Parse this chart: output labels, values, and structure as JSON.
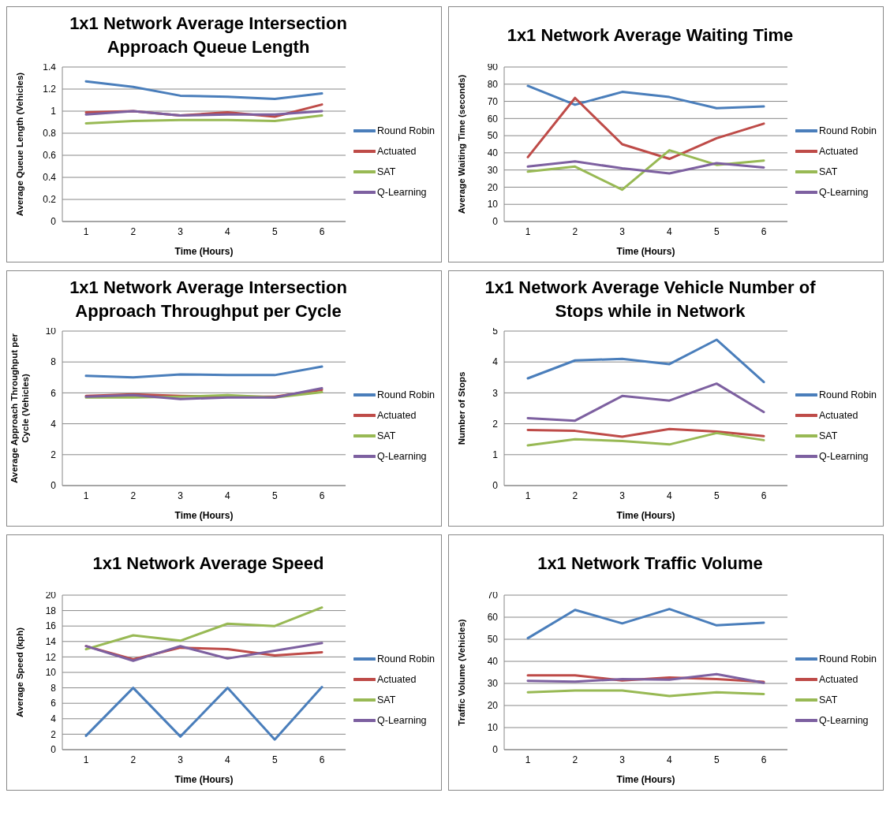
{
  "chart_data": [
    {
      "type": "line",
      "title": "1x1 Network Average Intersection Approach Queue Length",
      "xlabel": "Time (Hours)",
      "ylabel": "Average Queue Length (Vehicles)",
      "categories": [
        "1",
        "2",
        "3",
        "4",
        "5",
        "6"
      ],
      "ylim": [
        0,
        1.4
      ],
      "yticks": [
        0,
        0.2,
        0.4,
        0.6,
        0.8,
        1,
        1.2,
        1.4
      ],
      "grid": "y",
      "legend": "right",
      "series": [
        {
          "name": "Round Robin",
          "color": "#4a7ebb",
          "values": [
            1.27,
            1.22,
            1.14,
            1.13,
            1.11,
            1.16
          ]
        },
        {
          "name": "Actuated",
          "color": "#be4b48",
          "values": [
            0.99,
            1.0,
            0.96,
            0.99,
            0.95,
            1.06
          ]
        },
        {
          "name": "SAT",
          "color": "#98b954",
          "values": [
            0.89,
            0.91,
            0.92,
            0.92,
            0.91,
            0.96
          ]
        },
        {
          "name": "Q-Learning",
          "color": "#7d60a0",
          "values": [
            0.97,
            1.0,
            0.96,
            0.97,
            0.97,
            1.0
          ]
        }
      ]
    },
    {
      "type": "line",
      "title": "1x1 Network Average Waiting Time",
      "xlabel": "Time (Hours)",
      "ylabel": "Average Waiting Time (seconds)",
      "categories": [
        "1",
        "2",
        "3",
        "4",
        "5",
        "6"
      ],
      "ylim": [
        0,
        90
      ],
      "yticks": [
        0,
        10,
        20,
        30,
        40,
        50,
        60,
        70,
        80,
        90
      ],
      "grid": "y",
      "legend": "right",
      "series": [
        {
          "name": "Round Robin",
          "color": "#4a7ebb",
          "values": [
            79,
            68,
            75.5,
            72.5,
            66,
            67
          ]
        },
        {
          "name": "Actuated",
          "color": "#be4b48",
          "values": [
            37.5,
            72,
            45,
            36.5,
            48.5,
            57
          ]
        },
        {
          "name": "SAT",
          "color": "#98b954",
          "values": [
            29,
            32,
            18.5,
            41.5,
            33,
            35.5
          ]
        },
        {
          "name": "Q-Learning",
          "color": "#7d60a0",
          "values": [
            32,
            35,
            31,
            28,
            34,
            31.5
          ]
        }
      ]
    },
    {
      "type": "line",
      "title": "1x1 Network Average Intersection Approach Throughput per Cycle",
      "xlabel": "Time (Hours)",
      "ylabel": "Average Approach Throughput per Cycle (Vehicles)",
      "categories": [
        "1",
        "2",
        "3",
        "4",
        "5",
        "6"
      ],
      "ylim": [
        0,
        10
      ],
      "yticks": [
        0,
        2,
        4,
        6,
        8,
        10
      ],
      "grid": "y",
      "legend": "right",
      "series": [
        {
          "name": "Round Robin",
          "color": "#4a7ebb",
          "values": [
            7.1,
            7.0,
            7.2,
            7.15,
            7.15,
            7.7
          ]
        },
        {
          "name": "Actuated",
          "color": "#be4b48",
          "values": [
            5.8,
            5.9,
            5.8,
            5.75,
            5.75,
            6.2
          ]
        },
        {
          "name": "SAT",
          "color": "#98b954",
          "values": [
            5.7,
            5.7,
            5.75,
            5.85,
            5.7,
            6.05
          ]
        },
        {
          "name": "Q-Learning",
          "color": "#7d60a0",
          "values": [
            5.75,
            5.85,
            5.6,
            5.7,
            5.7,
            6.3
          ]
        }
      ]
    },
    {
      "type": "line",
      "title": "1x1 Network Average Vehicle Number of Stops while in Network",
      "xlabel": "Time (Hours)",
      "ylabel": "Number of Stops",
      "categories": [
        "1",
        "2",
        "3",
        "4",
        "5",
        "6"
      ],
      "ylim": [
        0,
        5
      ],
      "yticks": [
        0,
        1,
        2,
        3,
        4,
        5
      ],
      "grid": "y",
      "legend": "right",
      "series": [
        {
          "name": "Round Robin",
          "color": "#4a7ebb",
          "values": [
            3.47,
            4.05,
            4.1,
            3.93,
            4.72,
            3.35
          ]
        },
        {
          "name": "Actuated",
          "color": "#be4b48",
          "values": [
            1.8,
            1.77,
            1.58,
            1.83,
            1.75,
            1.6
          ]
        },
        {
          "name": "SAT",
          "color": "#98b954",
          "values": [
            1.3,
            1.5,
            1.44,
            1.33,
            1.7,
            1.47
          ]
        },
        {
          "name": "Q-Learning",
          "color": "#7d60a0",
          "values": [
            2.18,
            2.1,
            2.9,
            2.75,
            3.3,
            2.38
          ]
        }
      ]
    },
    {
      "type": "line",
      "title": "1x1 Network Average Speed",
      "xlabel": "Time (Hours)",
      "ylabel": "Average Speed (kph)",
      "categories": [
        "1",
        "2",
        "3",
        "4",
        "5",
        "6"
      ],
      "ylim": [
        0,
        20
      ],
      "yticks": [
        0,
        2,
        4,
        6,
        8,
        10,
        12,
        14,
        16,
        18,
        20
      ],
      "grid": "y",
      "legend": "right",
      "series": [
        {
          "name": "Round Robin",
          "color": "#4a7ebb",
          "values": [
            1.8,
            8,
            1.7,
            8,
            1.3,
            8.1
          ]
        },
        {
          "name": "Actuated",
          "color": "#be4b48",
          "values": [
            13.4,
            11.7,
            13.2,
            13.0,
            12.2,
            12.6
          ]
        },
        {
          "name": "SAT",
          "color": "#98b954",
          "values": [
            13.0,
            14.8,
            14.1,
            16.3,
            16.0,
            18.4
          ]
        },
        {
          "name": "Q-Learning",
          "color": "#7d60a0",
          "values": [
            13.4,
            11.5,
            13.4,
            11.8,
            12.8,
            13.8
          ]
        }
      ]
    },
    {
      "type": "line",
      "title": "1x1 Network Traffic Volume",
      "xlabel": "Time (Hours)",
      "ylabel": "Traffic Volume (Vehicles)",
      "categories": [
        "1",
        "2",
        "3",
        "4",
        "5",
        "6"
      ],
      "ylim": [
        0,
        70
      ],
      "yticks": [
        0,
        10,
        20,
        30,
        40,
        50,
        60,
        70
      ],
      "grid": "y",
      "legend": "right",
      "series": [
        {
          "name": "Round Robin",
          "color": "#4a7ebb",
          "values": [
            50.5,
            63.3,
            57.2,
            63.7,
            56.3,
            57.5
          ]
        },
        {
          "name": "Actuated",
          "color": "#be4b48",
          "values": [
            33.7,
            33.7,
            31.3,
            32.7,
            32,
            30.7
          ]
        },
        {
          "name": "SAT",
          "color": "#98b954",
          "values": [
            26,
            26.8,
            26.8,
            24.3,
            26,
            25.2
          ]
        },
        {
          "name": "Q-Learning",
          "color": "#7d60a0",
          "values": [
            31.2,
            30.8,
            32,
            31.7,
            34.2,
            30.3
          ]
        }
      ]
    }
  ]
}
